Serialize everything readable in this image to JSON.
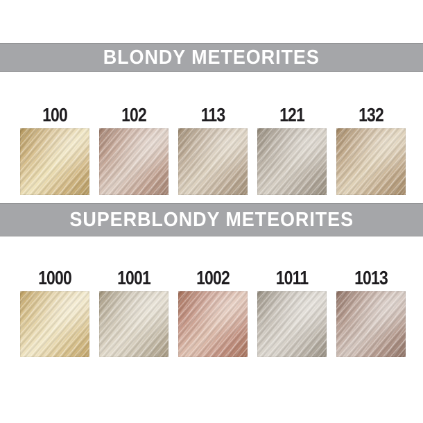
{
  "page": {
    "background": "#ffffff",
    "label_color": "#1e1c1f",
    "banner_background": "#a5a6a9",
    "banner_text_color": "#ffffff"
  },
  "sections": [
    {
      "banner": {
        "label": "BLONDY METEORITES"
      },
      "swatches": [
        {
          "code": "100",
          "shadow": "#b3975e",
          "base": "#d3b986",
          "highlight": "#efe3bb"
        },
        {
          "code": "102",
          "shadow": "#a1806f",
          "base": "#c3a494",
          "highlight": "#ddcdc2"
        },
        {
          "code": "113",
          "shadow": "#9f8c74",
          "base": "#c1b09c",
          "highlight": "#ddd2c0"
        },
        {
          "code": "121",
          "shadow": "#948a7b",
          "base": "#b9b0a4",
          "highlight": "#d6cfc4"
        },
        {
          "code": "132",
          "shadow": "#a38866",
          "base": "#c4ad8f",
          "highlight": "#e0d2b8"
        }
      ]
    },
    {
      "banner": {
        "label": "SUPERBLONDY METEORITES"
      },
      "swatches": [
        {
          "code": "1000",
          "shadow": "#c0a266",
          "base": "#dcc795",
          "highlight": "#f2e8c8"
        },
        {
          "code": "1001",
          "shadow": "#a3967e",
          "base": "#c8bfad",
          "highlight": "#e3dccd"
        },
        {
          "code": "1002",
          "shadow": "#a5705a",
          "base": "#c49484",
          "highlight": "#e0c2b2"
        },
        {
          "code": "1011",
          "shadow": "#958d80",
          "base": "#c2bbb1",
          "highlight": "#ddd8d0"
        },
        {
          "code": "1013",
          "shadow": "#8e7164",
          "base": "#b69c90",
          "highlight": "#d4c6be"
        }
      ]
    }
  ]
}
